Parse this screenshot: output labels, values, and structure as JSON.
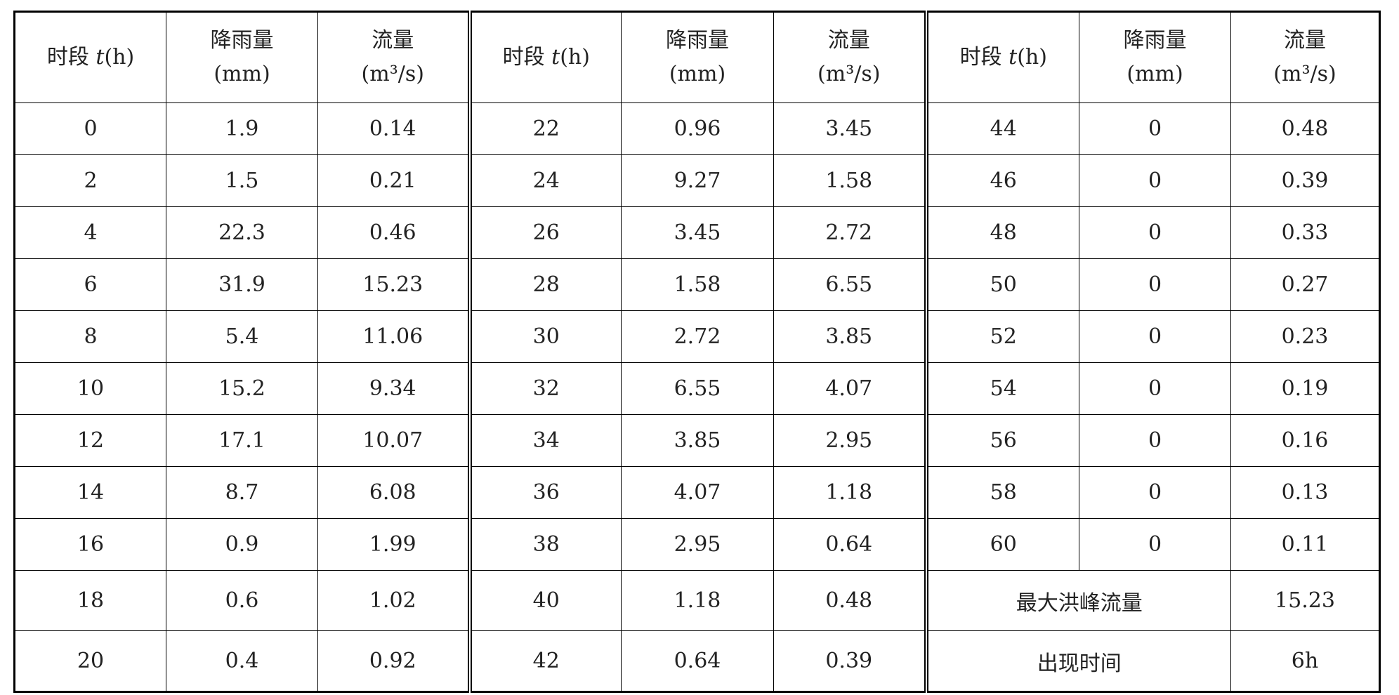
{
  "table": {
    "header": [
      {
        "label": "时段",
        "var": "t",
        "unit": "(h)"
      },
      {
        "label": "降雨量",
        "unit": "(mm)"
      },
      {
        "label": "流量",
        "unit": "(m³/s)"
      }
    ],
    "groups": [
      {
        "rows": [
          [
            0,
            1.9,
            0.14
          ],
          [
            2,
            1.5,
            0.21
          ],
          [
            4,
            22.3,
            0.46
          ],
          [
            6,
            31.9,
            15.23
          ],
          [
            8,
            5.4,
            11.06
          ],
          [
            10,
            15.2,
            9.34
          ],
          [
            12,
            17.1,
            10.07
          ],
          [
            14,
            8.7,
            6.08
          ],
          [
            16,
            0.9,
            1.99
          ],
          [
            18,
            0.6,
            1.02
          ],
          [
            20,
            0.4,
            0.92
          ]
        ]
      },
      {
        "rows": [
          [
            22,
            0.96,
            3.45
          ],
          [
            24,
            9.27,
            1.58
          ],
          [
            26,
            3.45,
            2.72
          ],
          [
            28,
            1.58,
            6.55
          ],
          [
            30,
            2.72,
            3.85
          ],
          [
            32,
            6.55,
            4.07
          ],
          [
            34,
            3.85,
            2.95
          ],
          [
            36,
            4.07,
            1.18
          ],
          [
            38,
            2.95,
            0.64
          ],
          [
            40,
            1.18,
            0.48
          ],
          [
            42,
            0.64,
            0.39
          ]
        ]
      },
      {
        "rows": [
          [
            44,
            0,
            0.48
          ],
          [
            46,
            0,
            0.39
          ],
          [
            48,
            0,
            0.33
          ],
          [
            50,
            0,
            0.27
          ],
          [
            52,
            0,
            0.23
          ],
          [
            54,
            0,
            0.19
          ],
          [
            56,
            0,
            0.16
          ],
          [
            58,
            0,
            0.13
          ],
          [
            60,
            0,
            0.11
          ]
        ]
      }
    ],
    "summary": [
      {
        "label": "最大洪峰流量",
        "value": 15.23
      },
      {
        "label": "出现时间",
        "value": "6h"
      }
    ]
  }
}
